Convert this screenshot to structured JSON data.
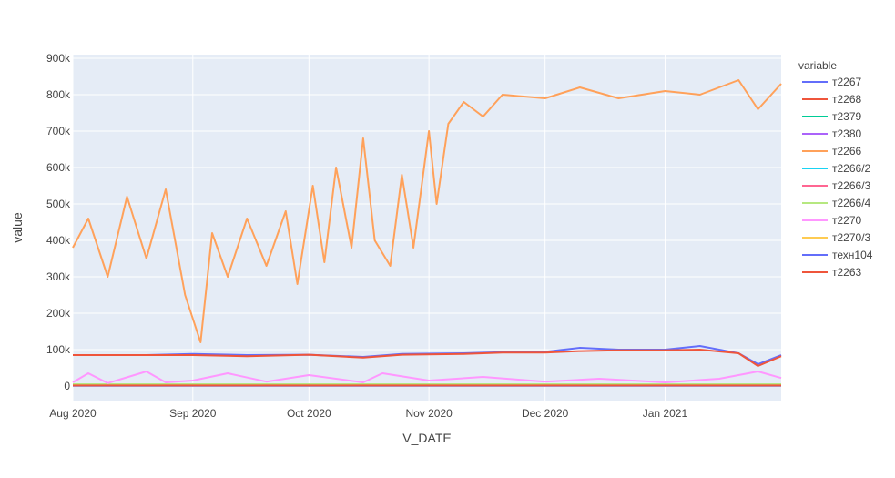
{
  "chart_data": {
    "type": "line",
    "xlabel": "V_DATE",
    "ylabel": "value",
    "xlim": [
      "2020-08-01",
      "2021-01-31"
    ],
    "ylim": [
      -40000,
      910000
    ],
    "x_ticks": [
      {
        "date": "2020-08-01",
        "label": "Aug 2020"
      },
      {
        "date": "2020-09-01",
        "label": "Sep 2020"
      },
      {
        "date": "2020-10-01",
        "label": "Oct 2020"
      },
      {
        "date": "2020-11-01",
        "label": "Nov 2020"
      },
      {
        "date": "2020-12-01",
        "label": "Dec 2020"
      },
      {
        "date": "2021-01-01",
        "label": "Jan 2021"
      }
    ],
    "y_ticks": [
      {
        "value": 0,
        "label": "0"
      },
      {
        "value": 100000,
        "label": "100k"
      },
      {
        "value": 200000,
        "label": "200k"
      },
      {
        "value": 300000,
        "label": "300k"
      },
      {
        "value": 400000,
        "label": "400k"
      },
      {
        "value": 500000,
        "label": "500k"
      },
      {
        "value": 600000,
        "label": "600k"
      },
      {
        "value": 700000,
        "label": "700k"
      },
      {
        "value": 800000,
        "label": "800k"
      },
      {
        "value": 900000,
        "label": "900k"
      }
    ],
    "grid": true,
    "legend": {
      "title": "variable",
      "position": "right"
    },
    "series": [
      {
        "name": "т2267",
        "color": "#636efa",
        "points": [
          [
            "2020-08-01",
            85000
          ],
          [
            "2020-08-20",
            85000
          ],
          [
            "2020-09-01",
            88000
          ],
          [
            "2020-09-15",
            85000
          ],
          [
            "2020-10-01",
            86000
          ],
          [
            "2020-10-15",
            80000
          ],
          [
            "2020-10-25",
            88000
          ],
          [
            "2020-11-10",
            90000
          ],
          [
            "2020-11-20",
            93000
          ],
          [
            "2020-12-01",
            94000
          ],
          [
            "2020-12-10",
            105000
          ],
          [
            "2020-12-20",
            100000
          ],
          [
            "2021-01-01",
            100000
          ],
          [
            "2021-01-10",
            110000
          ],
          [
            "2021-01-20",
            90000
          ],
          [
            "2021-01-25",
            60000
          ],
          [
            "2021-01-31",
            85000
          ]
        ]
      },
      {
        "name": "т2268",
        "color": "#ef553b",
        "points": [
          [
            "2020-08-01",
            85000
          ],
          [
            "2020-08-20",
            85000
          ],
          [
            "2020-09-01",
            85000
          ],
          [
            "2020-09-15",
            82000
          ],
          [
            "2020-10-01",
            86000
          ],
          [
            "2020-10-15",
            78000
          ],
          [
            "2020-10-25",
            86000
          ],
          [
            "2020-11-10",
            88000
          ],
          [
            "2020-11-20",
            92000
          ],
          [
            "2020-12-01",
            92000
          ],
          [
            "2020-12-10",
            96000
          ],
          [
            "2020-12-20",
            98000
          ],
          [
            "2021-01-01",
            98000
          ],
          [
            "2021-01-10",
            100000
          ],
          [
            "2021-01-20",
            90000
          ],
          [
            "2021-01-25",
            55000
          ],
          [
            "2021-01-31",
            82000
          ]
        ]
      },
      {
        "name": "т2379",
        "color": "#00cc96",
        "points": [
          [
            "2020-08-01",
            2000
          ],
          [
            "2020-10-01",
            2500
          ],
          [
            "2020-12-01",
            2000
          ],
          [
            "2021-01-31",
            2000
          ]
        ]
      },
      {
        "name": "т2380",
        "color": "#ab63fa",
        "points": [
          [
            "2020-08-01",
            1500
          ],
          [
            "2020-10-01",
            2000
          ],
          [
            "2020-12-01",
            1500
          ],
          [
            "2021-01-31",
            1500
          ]
        ]
      },
      {
        "name": "т2266",
        "color": "#ffa15a",
        "points": [
          [
            "2020-08-01",
            380000
          ],
          [
            "2020-08-05",
            460000
          ],
          [
            "2020-08-10",
            300000
          ],
          [
            "2020-08-15",
            520000
          ],
          [
            "2020-08-20",
            350000
          ],
          [
            "2020-08-25",
            540000
          ],
          [
            "2020-08-30",
            250000
          ],
          [
            "2020-09-03",
            120000
          ],
          [
            "2020-09-06",
            420000
          ],
          [
            "2020-09-10",
            300000
          ],
          [
            "2020-09-15",
            460000
          ],
          [
            "2020-09-20",
            330000
          ],
          [
            "2020-09-25",
            480000
          ],
          [
            "2020-09-28",
            280000
          ],
          [
            "2020-10-02",
            550000
          ],
          [
            "2020-10-05",
            340000
          ],
          [
            "2020-10-08",
            600000
          ],
          [
            "2020-10-12",
            380000
          ],
          [
            "2020-10-15",
            680000
          ],
          [
            "2020-10-18",
            400000
          ],
          [
            "2020-10-22",
            330000
          ],
          [
            "2020-10-25",
            580000
          ],
          [
            "2020-10-28",
            380000
          ],
          [
            "2020-11-01",
            700000
          ],
          [
            "2020-11-03",
            500000
          ],
          [
            "2020-11-06",
            720000
          ],
          [
            "2020-11-10",
            780000
          ],
          [
            "2020-11-15",
            740000
          ],
          [
            "2020-11-20",
            800000
          ],
          [
            "2020-12-01",
            790000
          ],
          [
            "2020-12-10",
            820000
          ],
          [
            "2020-12-20",
            790000
          ],
          [
            "2021-01-01",
            810000
          ],
          [
            "2021-01-10",
            800000
          ],
          [
            "2021-01-20",
            840000
          ],
          [
            "2021-01-25",
            760000
          ],
          [
            "2021-01-31",
            830000
          ]
        ]
      },
      {
        "name": "т2266/2",
        "color": "#19d3f3",
        "points": [
          [
            "2020-08-01",
            3000
          ],
          [
            "2020-10-01",
            3000
          ],
          [
            "2020-12-01",
            3000
          ],
          [
            "2021-01-31",
            3000
          ]
        ]
      },
      {
        "name": "т2266/3",
        "color": "#ff6692",
        "points": [
          [
            "2020-08-01",
            4000
          ],
          [
            "2020-10-01",
            4000
          ],
          [
            "2020-12-01",
            4000
          ],
          [
            "2021-01-31",
            4000
          ]
        ]
      },
      {
        "name": "т2266/4",
        "color": "#b6e880",
        "points": [
          [
            "2020-08-01",
            5000
          ],
          [
            "2020-10-01",
            5000
          ],
          [
            "2020-12-01",
            5000
          ],
          [
            "2021-01-31",
            5000
          ]
        ]
      },
      {
        "name": "т2270",
        "color": "#ff97ff",
        "points": [
          [
            "2020-08-01",
            10000
          ],
          [
            "2020-08-05",
            35000
          ],
          [
            "2020-08-10",
            8000
          ],
          [
            "2020-08-20",
            40000
          ],
          [
            "2020-08-25",
            10000
          ],
          [
            "2020-09-01",
            15000
          ],
          [
            "2020-09-10",
            35000
          ],
          [
            "2020-09-20",
            12000
          ],
          [
            "2020-10-01",
            30000
          ],
          [
            "2020-10-15",
            10000
          ],
          [
            "2020-10-20",
            35000
          ],
          [
            "2020-11-01",
            15000
          ],
          [
            "2020-11-15",
            25000
          ],
          [
            "2020-12-01",
            12000
          ],
          [
            "2020-12-15",
            20000
          ],
          [
            "2021-01-01",
            10000
          ],
          [
            "2021-01-15",
            20000
          ],
          [
            "2021-01-25",
            40000
          ],
          [
            "2021-01-31",
            22000
          ]
        ]
      },
      {
        "name": "т2270/3",
        "color": "#fecb52",
        "points": [
          [
            "2020-08-01",
            1000
          ],
          [
            "2020-10-01",
            1000
          ],
          [
            "2020-12-01",
            1000
          ],
          [
            "2021-01-31",
            1000
          ]
        ]
      },
      {
        "name": "техн104",
        "color": "#636efa",
        "points": [
          [
            "2020-08-01",
            500
          ],
          [
            "2020-10-01",
            500
          ],
          [
            "2020-12-01",
            500
          ],
          [
            "2021-01-31",
            500
          ]
        ]
      },
      {
        "name": "т2263",
        "color": "#ef553b",
        "points": [
          [
            "2020-08-01",
            1500
          ],
          [
            "2020-10-01",
            1500
          ],
          [
            "2020-12-01",
            1500
          ],
          [
            "2021-01-31",
            1500
          ]
        ]
      }
    ]
  }
}
